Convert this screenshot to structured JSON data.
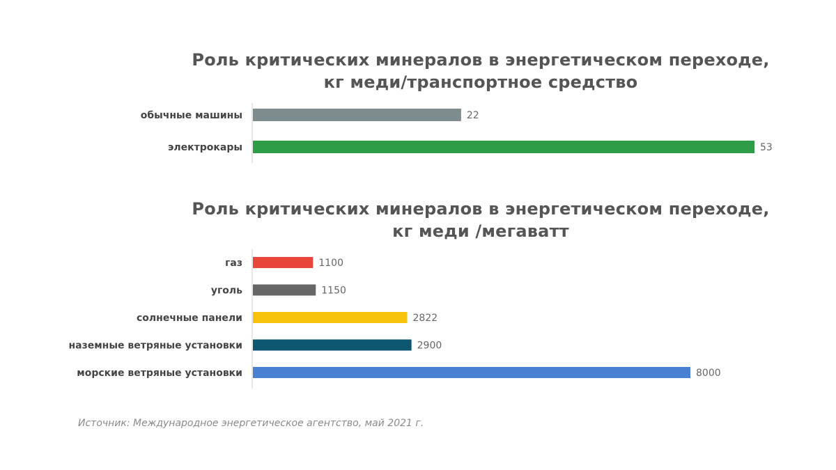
{
  "chart_data": [
    {
      "type": "bar",
      "orientation": "horizontal",
      "title": [
        "Роль критических минералов в энергетическом переходе,",
        "кг меди/транспортное средство"
      ],
      "categories": [
        "обычные машины",
        "электрокары"
      ],
      "values": [
        22,
        53
      ],
      "value_labels": [
        "22",
        "53"
      ],
      "colors": [
        "#7f8c8d",
        "#2e9d47"
      ],
      "xlim": [
        0,
        53
      ],
      "grid": false
    },
    {
      "type": "bar",
      "orientation": "horizontal",
      "title": [
        "Роль критических минералов в энергетическом переходе,",
        "кг меди /мегаватт"
      ],
      "categories": [
        "газ",
        "уголь",
        "солнечные панели",
        "наземные ветряные установки",
        "морские ветряные установки"
      ],
      "values": [
        1100,
        1150,
        2822,
        2900,
        8000
      ],
      "value_labels": [
        "1100",
        "1150",
        "2822",
        "2900",
        "8000"
      ],
      "colors": [
        "#e8463b",
        "#666666",
        "#f6c40d",
        "#0c5670",
        "#4a80d0"
      ],
      "xlim": [
        0,
        8000
      ],
      "grid": false
    }
  ],
  "source": "Источник: Международное энергетическое агентство, май 2021 г."
}
